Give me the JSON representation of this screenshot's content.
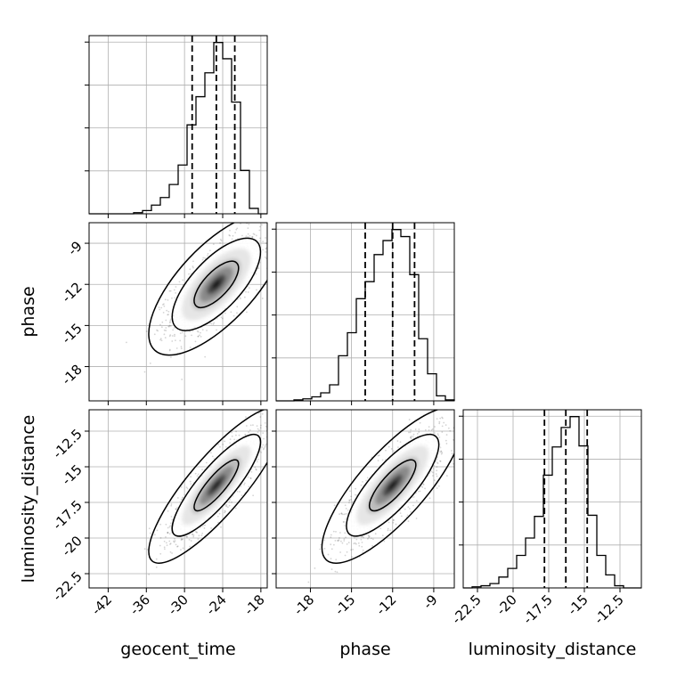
{
  "chart_data": {
    "type": "corner",
    "parameters": [
      "geocent_time",
      "phase",
      "luminosity_distance"
    ],
    "grid": true,
    "marginals": [
      {
        "parameter": "geocent_time",
        "range": [
          -45,
          -17
        ],
        "xticks": [
          -42,
          -36,
          -30,
          -24,
          -18
        ],
        "bins": [
          {
            "x0": -45.0,
            "x1": -43.6,
            "count": 0
          },
          {
            "x0": -43.6,
            "x1": -42.2,
            "count": 0
          },
          {
            "x0": -42.2,
            "x1": -40.8,
            "count": 0
          },
          {
            "x0": -40.8,
            "x1": -39.4,
            "count": 0
          },
          {
            "x0": -39.4,
            "x1": -38.0,
            "count": 0
          },
          {
            "x0": -38.0,
            "x1": -36.6,
            "count": 1
          },
          {
            "x0": -36.6,
            "x1": -35.2,
            "count": 3
          },
          {
            "x0": -35.2,
            "x1": -33.8,
            "count": 8
          },
          {
            "x0": -33.8,
            "x1": -32.4,
            "count": 15
          },
          {
            "x0": -32.4,
            "x1": -31.0,
            "count": 27
          },
          {
            "x0": -31.0,
            "x1": -29.6,
            "count": 45
          },
          {
            "x0": -29.6,
            "x1": -28.2,
            "count": 82
          },
          {
            "x0": -28.2,
            "x1": -26.8,
            "count": 108
          },
          {
            "x0": -26.8,
            "x1": -25.4,
            "count": 130
          },
          {
            "x0": -25.4,
            "x1": -24.0,
            "count": 158
          },
          {
            "x0": -24.0,
            "x1": -22.6,
            "count": 143
          },
          {
            "x0": -22.6,
            "x1": -21.2,
            "count": 103
          },
          {
            "x0": -21.2,
            "x1": -19.8,
            "count": 40
          },
          {
            "x0": -19.8,
            "x1": -18.4,
            "count": 5
          },
          {
            "x0": -18.4,
            "x1": -17.0,
            "count": 0
          }
        ],
        "quantiles": [
          -28.8,
          -25.0,
          -22.1
        ]
      },
      {
        "parameter": "phase",
        "range": [
          -20.5,
          -7.5
        ],
        "xticks": [
          -18,
          -15,
          -12,
          -9
        ],
        "bins": [
          {
            "x0": -20.5,
            "x1": -19.85,
            "count": 0
          },
          {
            "x0": -19.85,
            "x1": -19.2,
            "count": 0
          },
          {
            "x0": -19.2,
            "x1": -18.55,
            "count": 1
          },
          {
            "x0": -18.55,
            "x1": -17.9,
            "count": 2
          },
          {
            "x0": -17.9,
            "x1": -17.25,
            "count": 4
          },
          {
            "x0": -17.25,
            "x1": -16.6,
            "count": 8
          },
          {
            "x0": -16.6,
            "x1": -15.95,
            "count": 16
          },
          {
            "x0": -15.95,
            "x1": -15.3,
            "count": 45
          },
          {
            "x0": -15.3,
            "x1": -14.65,
            "count": 68
          },
          {
            "x0": -14.65,
            "x1": -14.0,
            "count": 102
          },
          {
            "x0": -14.0,
            "x1": -13.35,
            "count": 119
          },
          {
            "x0": -13.35,
            "x1": -12.7,
            "count": 146
          },
          {
            "x0": -12.7,
            "x1": -12.05,
            "count": 160
          },
          {
            "x0": -12.05,
            "x1": -11.4,
            "count": 171
          },
          {
            "x0": -11.4,
            "x1": -10.75,
            "count": 164
          },
          {
            "x0": -10.75,
            "x1": -10.1,
            "count": 126
          },
          {
            "x0": -10.1,
            "x1": -9.45,
            "count": 62
          },
          {
            "x0": -9.45,
            "x1": -8.8,
            "count": 27
          },
          {
            "x0": -8.8,
            "x1": -8.15,
            "count": 5
          },
          {
            "x0": -8.15,
            "x1": -7.5,
            "count": 1
          }
        ],
        "quantiles": [
          -14.0,
          -12.0,
          -10.4
        ]
      },
      {
        "parameter": "luminosity_distance",
        "range": [
          -23.5,
          -11.0
        ],
        "xticks": [
          -22.5,
          -20.0,
          -17.5,
          -15.0,
          -12.5
        ],
        "bins": [
          {
            "x0": -23.5,
            "x1": -22.875,
            "count": 0
          },
          {
            "x0": -22.875,
            "x1": -22.25,
            "count": 1
          },
          {
            "x0": -22.25,
            "x1": -21.625,
            "count": 2
          },
          {
            "x0": -21.625,
            "x1": -21.0,
            "count": 4
          },
          {
            "x0": -21.0,
            "x1": -20.375,
            "count": 10
          },
          {
            "x0": -20.375,
            "x1": -19.75,
            "count": 18
          },
          {
            "x0": -19.75,
            "x1": -19.125,
            "count": 30
          },
          {
            "x0": -19.125,
            "x1": -18.5,
            "count": 46
          },
          {
            "x0": -18.5,
            "x1": -17.875,
            "count": 66
          },
          {
            "x0": -17.875,
            "x1": -17.25,
            "count": 104
          },
          {
            "x0": -17.25,
            "x1": -16.625,
            "count": 130
          },
          {
            "x0": -16.625,
            "x1": -16.0,
            "count": 148
          },
          {
            "x0": -16.0,
            "x1": -15.375,
            "count": 158
          },
          {
            "x0": -15.375,
            "x1": -14.75,
            "count": 131
          },
          {
            "x0": -14.75,
            "x1": -14.125,
            "count": 67
          },
          {
            "x0": -14.125,
            "x1": -13.5,
            "count": 30
          },
          {
            "x0": -13.5,
            "x1": -12.875,
            "count": 12
          },
          {
            "x0": -12.875,
            "x1": -12.25,
            "count": 2
          },
          {
            "x0": -12.25,
            "x1": -11.625,
            "count": 0
          },
          {
            "x0": -11.625,
            "x1": -11.0,
            "count": 0
          }
        ],
        "quantiles": [
          -17.8,
          -16.3,
          -14.8
        ]
      }
    ],
    "joint": [
      {
        "x": "geocent_time",
        "y": "phase",
        "xrange": [
          -45,
          -17
        ],
        "yrange": [
          -20.5,
          -7.5
        ],
        "xticks": [
          -42,
          -36,
          -30,
          -24,
          -18
        ],
        "yticks": [
          -18,
          -15,
          -12,
          -9
        ],
        "mean": [
          -25,
          -12
        ],
        "std": [
          3.5,
          1.7
        ],
        "correlation": 0.7
      },
      {
        "x": "geocent_time",
        "y": "luminosity_distance",
        "xrange": [
          -45,
          -17
        ],
        "yrange": [
          -23.5,
          -11.0
        ],
        "xticks": [
          -42,
          -36,
          -30,
          -24,
          -18
        ],
        "yticks": [
          -22.5,
          -20.0,
          -17.5,
          -15.0,
          -12.5
        ],
        "mean": [
          -25,
          -16.3
        ],
        "std": [
          3.5,
          1.8
        ],
        "correlation": 0.85
      },
      {
        "x": "phase",
        "y": "luminosity_distance",
        "xrange": [
          -20.5,
          -7.5
        ],
        "yrange": [
          -23.5,
          -11.0
        ],
        "xticks": [
          -18,
          -15,
          -12,
          -9
        ],
        "yticks": [
          -22.5,
          -20.0,
          -17.5,
          -15.0,
          -12.5
        ],
        "mean": [
          -12,
          -16.3
        ],
        "std": [
          1.7,
          1.8
        ],
        "correlation": 0.8
      }
    ],
    "contour_levels": [
      0.39,
      0.86,
      0.99
    ]
  }
}
